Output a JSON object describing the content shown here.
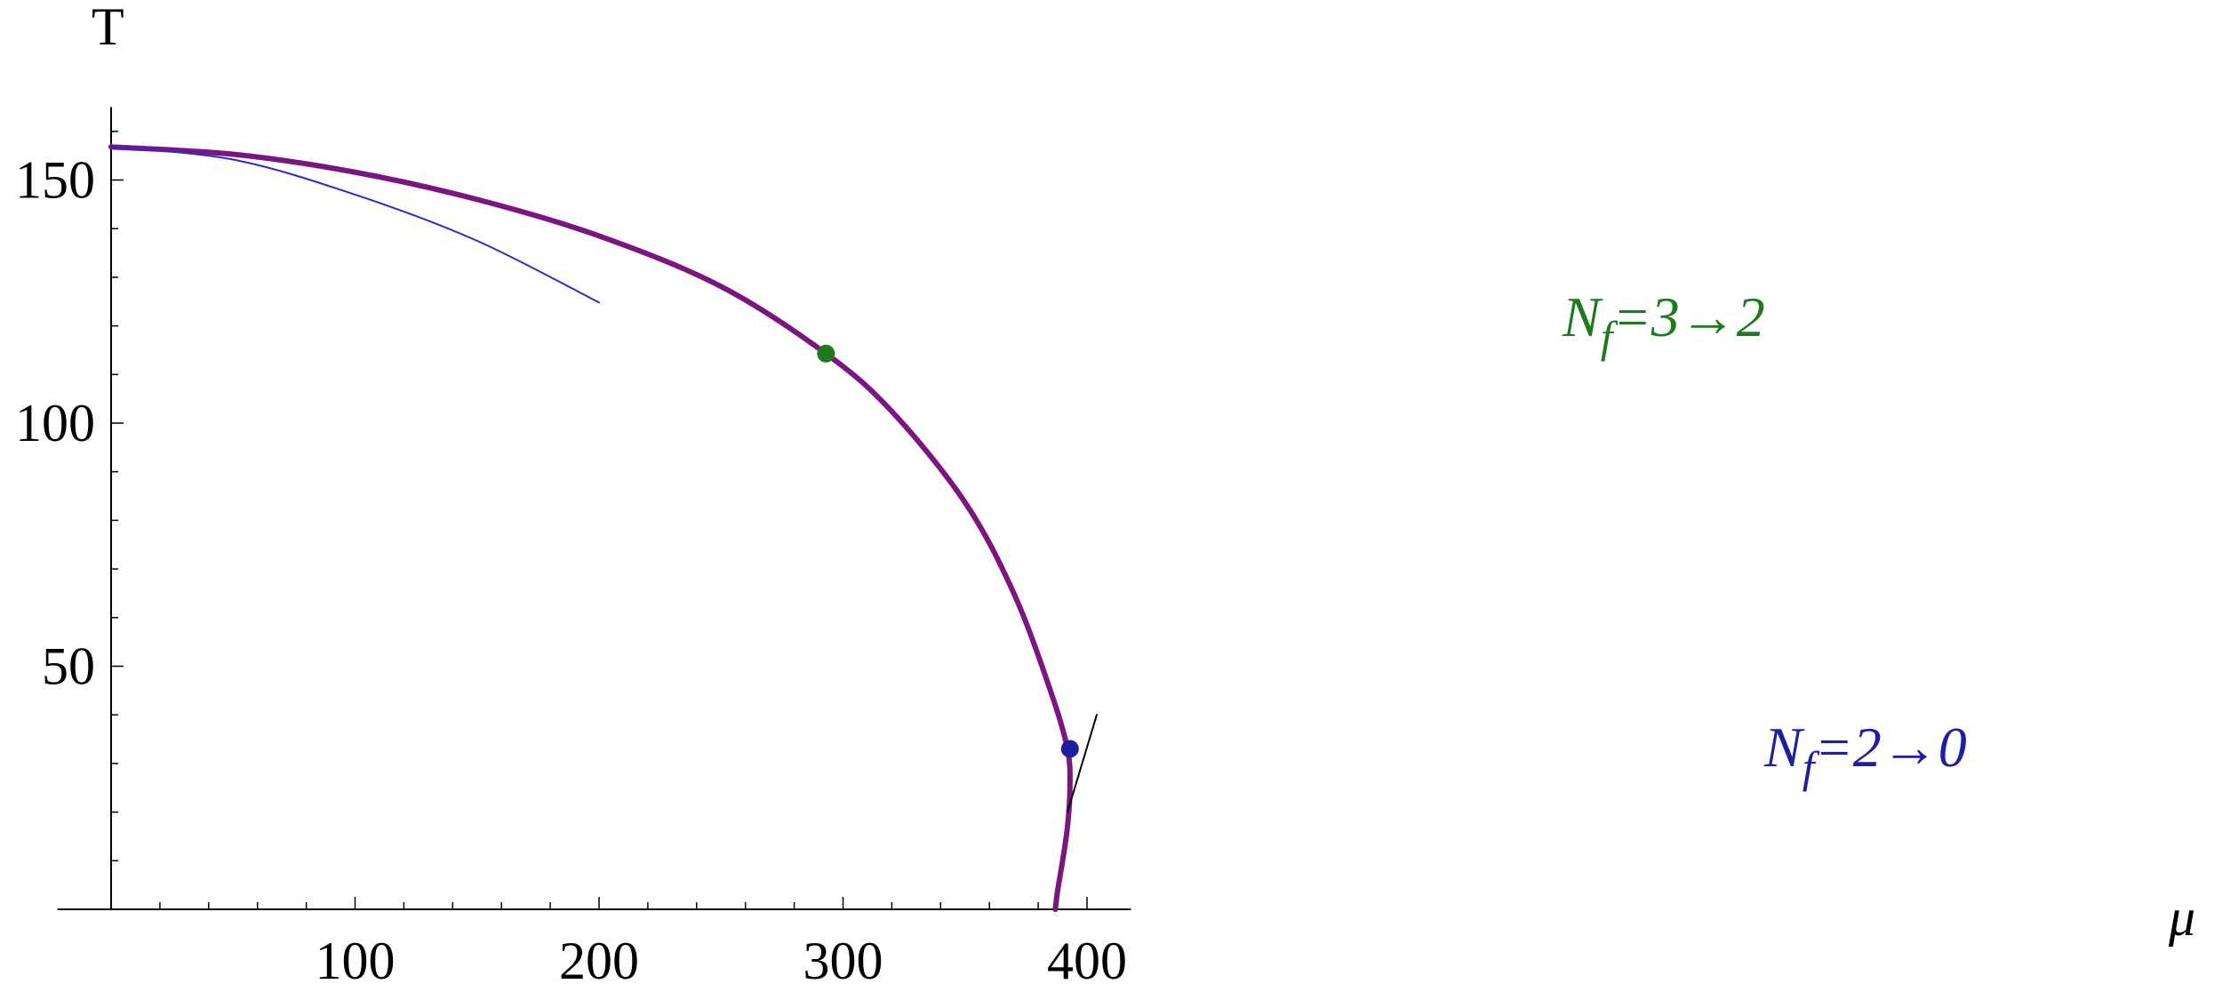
{
  "chart_data": {
    "type": "line",
    "xlabel": "μ",
    "ylabel": "T",
    "xlim": [
      -22,
      418
    ],
    "ylim": [
      0,
      165
    ],
    "grid": false,
    "x_ticks": [
      100,
      200,
      300,
      400
    ],
    "y_ticks": [
      50,
      100,
      150
    ],
    "x_tick_labels": [
      "100",
      "200",
      "300",
      "400"
    ],
    "y_tick_labels": [
      "50",
      "100",
      "150"
    ],
    "colors": {
      "main": "#7B1580",
      "approx": "#2B2BCC",
      "tangent": "#000000",
      "green": "#1E7A1E",
      "blue": "#1E1EA0"
    },
    "series": [
      {
        "role": "phase-boundary",
        "x": [
          0,
          50,
          100,
          150,
          200,
          250,
          293,
          320,
          350,
          370,
          385,
          392,
          393,
          392,
          390,
          388,
          387
        ],
        "y": [
          156.8,
          155.3,
          151.6,
          146.0,
          138.5,
          128.1,
          114.3,
          102.4,
          83.7,
          65.0,
          45.0,
          33.0,
          25.0,
          17.0,
          10.0,
          4.0,
          0
        ]
      },
      {
        "role": "small-mu-approximation",
        "x": [
          0,
          50,
          100,
          150,
          200
        ],
        "y": [
          156.8,
          154.2,
          147.0,
          137.5,
          124.8
        ]
      },
      {
        "role": "tangent-line",
        "x": [
          392,
          404
        ],
        "y": [
          20.0,
          40.0
        ]
      }
    ],
    "points": [
      {
        "x": 293,
        "y": 114.3,
        "label": "N_f=3→2",
        "color": "#1E7A1E"
      },
      {
        "x": 393,
        "y": 33.0,
        "label": "N_f=2→0",
        "color": "#1E1EA0"
      }
    ],
    "annotations": [
      {
        "text_main": "N",
        "sub": "f",
        "rest": "=3→2"
      },
      {
        "text_main": "N",
        "sub": "f",
        "rest": "=2→0"
      }
    ]
  }
}
